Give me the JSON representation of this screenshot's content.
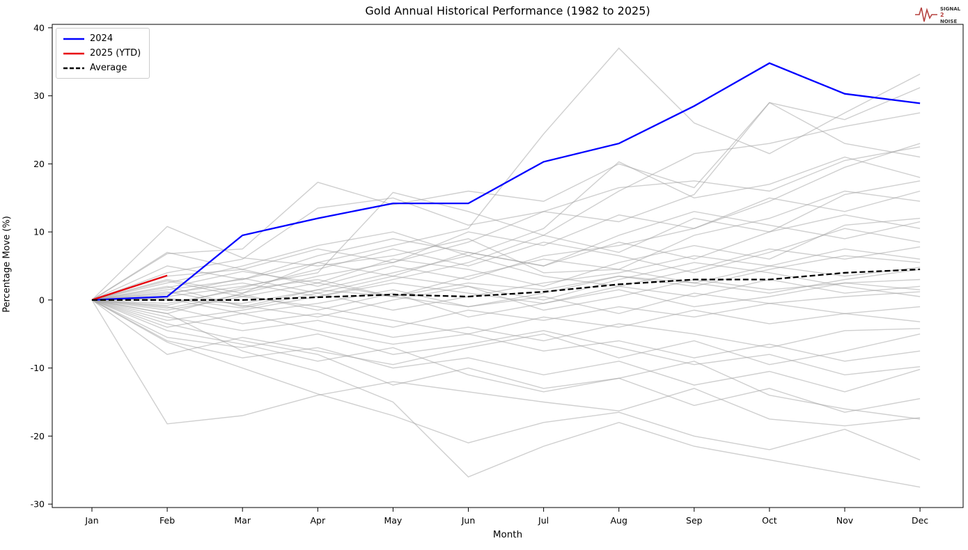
{
  "title": "Gold Annual Historical Performance (1982 to 2025)",
  "xlabel": "Month",
  "ylabel": "Percentage Move (%)",
  "logo": {
    "line1": "SIGNAL",
    "line2": "2",
    "line3": "NOISE",
    "color": "#b5413f"
  },
  "legend": {
    "items": [
      {
        "label": "2024",
        "color": "#0000ff",
        "dashed": false
      },
      {
        "label": "2025 (YTD)",
        "color": "#e8000b",
        "dashed": false
      },
      {
        "label": "Average",
        "color": "#000000",
        "dashed": true
      }
    ]
  },
  "colors": {
    "line_2024": "#0000ff",
    "line_2025": "#e8000b",
    "line_average": "#000000",
    "historical": "#a0a0a0",
    "axis": "#000000"
  },
  "chart_data": {
    "type": "line",
    "title": "Gold Annual Historical Performance (1982 to 2025)",
    "xlabel": "Month",
    "ylabel": "Percentage Move (%)",
    "categories": [
      "Jan",
      "Feb",
      "Mar",
      "Apr",
      "May",
      "Jun",
      "Jul",
      "Aug",
      "Sep",
      "Oct",
      "Nov",
      "Dec"
    ],
    "ylim": [
      -30,
      40
    ],
    "yticks": [
      -30,
      -20,
      -10,
      0,
      10,
      20,
      30,
      40
    ],
    "grid": false,
    "legend_position": "upper-left",
    "series": [
      {
        "name": "2024",
        "color": "#0000ff",
        "dashed": false,
        "values": [
          0,
          0.5,
          9.5,
          12.0,
          14.2,
          14.2,
          20.3,
          23.0,
          28.5,
          34.8,
          30.3,
          28.9
        ]
      },
      {
        "name": "2025 (YTD)",
        "color": "#e8000b",
        "dashed": false,
        "values": [
          0,
          3.6
        ]
      },
      {
        "name": "Average",
        "color": "#000000",
        "dashed": true,
        "values": [
          0,
          0.0,
          0.0,
          0.4,
          0.8,
          0.5,
          1.2,
          2.3,
          3.0,
          3.0,
          4.0,
          4.5
        ]
      }
    ],
    "historical_series": [
      [
        0,
        10.8,
        6.2,
        5.0,
        6.5,
        9.0,
        4.0,
        4.5,
        9.5,
        12.0,
        16.0,
        14.5
      ],
      [
        0,
        6.8,
        7.5,
        17.3,
        14.0,
        16.0,
        14.5,
        20.0,
        16.5,
        29.0,
        26.5,
        31.2
      ],
      [
        0,
        1.5,
        3.0,
        5.5,
        8.0,
        10.5,
        24.4,
        37.0,
        26.0,
        21.5,
        27.5,
        33.2
      ],
      [
        0,
        0.5,
        2.0,
        4.0,
        15.8,
        13.0,
        9.5,
        16.0,
        21.5,
        23.0,
        25.5,
        27.5
      ],
      [
        0,
        4.0,
        6.0,
        13.5,
        15.0,
        11.0,
        13.0,
        16.5,
        17.5,
        16.0,
        20.5,
        22.5
      ],
      [
        0,
        2.5,
        5.0,
        8.0,
        10.0,
        6.5,
        10.5,
        20.3,
        15.0,
        17.0,
        21.0,
        18.0
      ],
      [
        0,
        -2.0,
        1.0,
        3.5,
        5.5,
        8.5,
        13.0,
        11.5,
        15.5,
        29.0,
        23.0,
        21.0
      ],
      [
        0,
        3.5,
        4.5,
        2.0,
        5.0,
        3.0,
        6.5,
        8.0,
        10.5,
        14.5,
        19.5,
        23.0
      ],
      [
        0,
        1.0,
        2.5,
        0.5,
        3.0,
        5.5,
        9.5,
        7.0,
        12.0,
        10.0,
        15.5,
        17.5
      ],
      [
        0,
        -1.5,
        0.5,
        2.5,
        6.0,
        4.5,
        2.0,
        5.5,
        8.0,
        6.0,
        11.0,
        12.0
      ],
      [
        0,
        2.0,
        -1.0,
        1.5,
        4.0,
        6.5,
        3.5,
        2.0,
        4.5,
        7.5,
        6.0,
        7.8
      ],
      [
        0,
        0.8,
        3.2,
        1.0,
        -1.5,
        0.5,
        2.5,
        4.0,
        6.5,
        5.0,
        3.5,
        4.8
      ],
      [
        0,
        -0.5,
        1.5,
        3.0,
        0.5,
        -1.0,
        1.0,
        3.5,
        2.0,
        4.5,
        6.5,
        5.5
      ],
      [
        0,
        1.2,
        -0.8,
        -2.5,
        0.0,
        2.0,
        -1.5,
        0.5,
        3.0,
        1.5,
        2.5,
        3.0
      ],
      [
        0,
        -3.0,
        -1.5,
        0.5,
        2.5,
        1.0,
        -0.5,
        2.0,
        0.5,
        3.0,
        1.0,
        2.0
      ],
      [
        0,
        0.2,
        -2.0,
        -0.5,
        1.5,
        -1.0,
        0.5,
        -2.0,
        1.0,
        -0.5,
        0.5,
        1.2
      ],
      [
        0,
        -1.0,
        -3.5,
        -2.0,
        -4.0,
        -1.5,
        -3.0,
        -1.0,
        -2.5,
        -0.5,
        -2.0,
        -1.0
      ],
      [
        0,
        2.8,
        0.5,
        -1.0,
        -3.0,
        -5.0,
        -2.5,
        -4.0,
        -1.5,
        -3.5,
        -2.0,
        -3.2
      ],
      [
        0,
        -2.5,
        -4.5,
        -3.0,
        -5.5,
        -4.0,
        -6.0,
        -3.5,
        -5.0,
        -7.0,
        -4.5,
        -4.2
      ],
      [
        0,
        -4.0,
        -2.0,
        -4.5,
        -6.5,
        -5.0,
        -7.5,
        -6.0,
        -8.5,
        -6.5,
        -9.0,
        -7.5
      ],
      [
        0,
        -5.5,
        -7.0,
        -5.0,
        -8.0,
        -6.5,
        -4.5,
        -7.0,
        -9.5,
        -8.0,
        -11.0,
        -9.8
      ],
      [
        0,
        -6.0,
        -8.5,
        -7.0,
        -10.0,
        -8.5,
        -11.0,
        -9.0,
        -12.5,
        -10.5,
        -13.5,
        -10.2
      ],
      [
        0,
        -3.5,
        -6.0,
        -8.0,
        -12.5,
        -10.0,
        -13.0,
        -11.5,
        -9.0,
        -14.0,
        -16.0,
        -17.5
      ],
      [
        0,
        -18.2,
        -17.0,
        -14.0,
        -12.0,
        -13.5,
        -15.0,
        -16.3,
        -13.0,
        -17.5,
        -18.5,
        -17.3
      ],
      [
        0,
        -6.2,
        -10.0,
        -13.8,
        -17.0,
        -21.0,
        -18.0,
        -16.5,
        -20.0,
        -22.0,
        -19.0,
        -23.5
      ],
      [
        0,
        -2.0,
        -7.5,
        -10.5,
        -15.0,
        -26.0,
        -21.5,
        -18.0,
        -21.5,
        -23.5,
        -25.5,
        -27.5
      ],
      [
        0,
        5.0,
        3.0,
        6.5,
        9.0,
        7.0,
        5.0,
        9.5,
        13.0,
        11.0,
        9.0,
        11.5
      ],
      [
        0,
        7.0,
        4.5,
        7.5,
        5.5,
        10.0,
        8.0,
        12.5,
        10.5,
        15.0,
        13.0,
        16.0
      ],
      [
        0,
        -0.8,
        1.8,
        4.5,
        7.5,
        5.0,
        8.5,
        6.5,
        4.0,
        7.0,
        10.5,
        8.5
      ],
      [
        0,
        0.3,
        -1.2,
        1.0,
        3.5,
        2.0,
        0.0,
        3.0,
        5.5,
        4.0,
        2.0,
        0.5
      ],
      [
        0,
        1.8,
        4.2,
        2.5,
        0.5,
        3.5,
        6.0,
        4.5,
        2.5,
        5.0,
        7.5,
        6.0
      ],
      [
        0,
        -1.2,
        0.8,
        -1.5,
        1.0,
        -2.5,
        -0.5,
        1.5,
        -1.0,
        0.5,
        2.5,
        1.5
      ],
      [
        0,
        3.0,
        1.0,
        5.5,
        3.5,
        7.0,
        5.0,
        8.5,
        6.0,
        10.0,
        12.5,
        10.5
      ],
      [
        0,
        -4.5,
        -6.5,
        -9.0,
        -7.0,
        -11.0,
        -13.5,
        -11.5,
        -15.5,
        -13.0,
        -16.5,
        -14.5
      ],
      [
        0,
        0.0,
        -0.5,
        1.5,
        0.5,
        2.5,
        1.5,
        3.5,
        2.5,
        1.0,
        3.0,
        4.5
      ],
      [
        0,
        -8.0,
        -5.5,
        -7.5,
        -9.5,
        -7.0,
        -5.0,
        -8.5,
        -6.0,
        -9.5,
        -7.5,
        -5.0
      ]
    ]
  }
}
